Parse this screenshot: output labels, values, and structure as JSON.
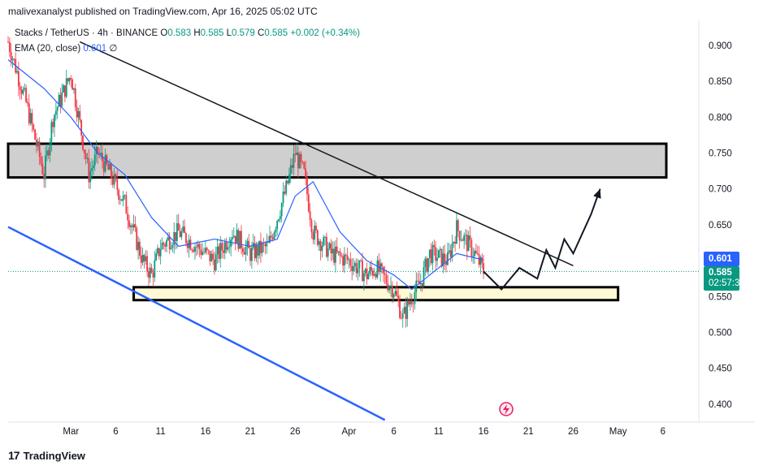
{
  "header": {
    "publish_line": "malivexanalyst published on TradingView.com, Apr 16, 2025 05:02 UTC"
  },
  "legend": {
    "symbol": "Stacks / TetherUS · 4h · BINANCE",
    "open_label": "O",
    "open": "0.583",
    "high_label": "H",
    "high": "0.585",
    "low_label": "L",
    "low": "0.579",
    "close_label": "C",
    "close": "0.585",
    "change": "+0.002 (+0.34%)",
    "ema_label": "EMA (20, close)",
    "ema_value": "0.601",
    "ema_suffix": "∅"
  },
  "price_tags": {
    "ema": "0.601",
    "close": "0.585",
    "countdown": "02:57:38"
  },
  "footer": {
    "brand": "TradingView"
  },
  "colors": {
    "up": "#089981",
    "down": "#f23645",
    "ema": "#2962ff",
    "trend_channel": "#2962ff",
    "resistance_zone": "#cfcfcf",
    "support_zone": "#fff9d6"
  },
  "chart_data": {
    "type": "line",
    "title": "Stacks / TetherUS · 4h · BINANCE",
    "y_axis": {
      "range": [
        0.375,
        0.935
      ],
      "ticks": [
        "0.900",
        "0.850",
        "0.800",
        "0.750",
        "0.700",
        "0.650",
        "0.600",
        "0.550",
        "0.500",
        "0.450",
        "0.400"
      ],
      "position": "right"
    },
    "x_axis": {
      "ticks": [
        "Mar",
        "6",
        "11",
        "16",
        "21",
        "26",
        "Apr",
        "6",
        "11",
        "16",
        "21",
        "26",
        "May",
        "6"
      ],
      "range": [
        "2025-02-22",
        "2025-05-10"
      ]
    },
    "grid": false,
    "series": [
      {
        "name": "Stacks / TetherUS",
        "style": "candles (approximate close path)",
        "x": [
          "2025-02-22",
          "2025-02-24",
          "2025-02-26",
          "2025-02-27",
          "2025-02-28",
          "2025-03-01",
          "2025-03-03",
          "2025-03-04",
          "2025-03-05",
          "2025-03-07",
          "2025-03-09",
          "2025-03-10",
          "2025-03-11",
          "2025-03-13",
          "2025-03-15",
          "2025-03-17",
          "2025-03-19",
          "2025-03-21",
          "2025-03-23",
          "2025-03-25",
          "2025-03-26",
          "2025-03-27",
          "2025-03-28",
          "2025-03-30",
          "2025-04-01",
          "2025-04-03",
          "2025-04-04",
          "2025-04-06",
          "2025-04-07",
          "2025-04-08",
          "2025-04-09",
          "2025-04-10",
          "2025-04-12",
          "2025-04-13",
          "2025-04-15",
          "2025-04-16"
        ],
        "values": [
          0.905,
          0.82,
          0.72,
          0.8,
          0.83,
          0.86,
          0.72,
          0.75,
          0.73,
          0.68,
          0.6,
          0.58,
          0.62,
          0.64,
          0.62,
          0.6,
          0.64,
          0.61,
          0.62,
          0.7,
          0.75,
          0.72,
          0.64,
          0.61,
          0.6,
          0.58,
          0.59,
          0.56,
          0.52,
          0.55,
          0.57,
          0.61,
          0.6,
          0.645,
          0.61,
          0.585
        ]
      },
      {
        "name": "EMA (20, close)",
        "x": [
          "2025-02-22",
          "2025-02-26",
          "2025-03-01",
          "2025-03-04",
          "2025-03-07",
          "2025-03-10",
          "2025-03-13",
          "2025-03-17",
          "2025-03-21",
          "2025-03-24",
          "2025-03-26",
          "2025-03-28",
          "2025-03-31",
          "2025-04-03",
          "2025-04-06",
          "2025-04-08",
          "2025-04-10",
          "2025-04-13",
          "2025-04-16"
        ],
        "values": [
          0.88,
          0.84,
          0.8,
          0.75,
          0.72,
          0.66,
          0.62,
          0.63,
          0.62,
          0.63,
          0.69,
          0.71,
          0.64,
          0.6,
          0.58,
          0.56,
          0.58,
          0.61,
          0.601
        ]
      }
    ],
    "drawings": {
      "resistance_zone": [
        0.716,
        0.763
      ],
      "support_zone": [
        0.545,
        0.563
      ],
      "descending_trendline": {
        "from": [
          "2025-03-02",
          0.905
        ],
        "to": [
          "2025-04-26",
          0.593
        ]
      },
      "lower_channel_line": {
        "from": [
          "2025-02-22",
          0.647
        ],
        "to": [
          "2025-04-05",
          0.378
        ]
      },
      "projection_path": {
        "x": [
          "2025-04-16",
          "2025-04-18",
          "2025-04-20",
          "2025-04-22",
          "2025-04-23",
          "2025-04-24",
          "2025-04-25",
          "2025-04-26",
          "2025-04-28",
          "2025-04-29"
        ],
        "values": [
          0.585,
          0.56,
          0.59,
          0.575,
          0.615,
          0.59,
          0.63,
          0.61,
          0.665,
          0.7
        ]
      }
    },
    "current_price_line": 0.585
  }
}
